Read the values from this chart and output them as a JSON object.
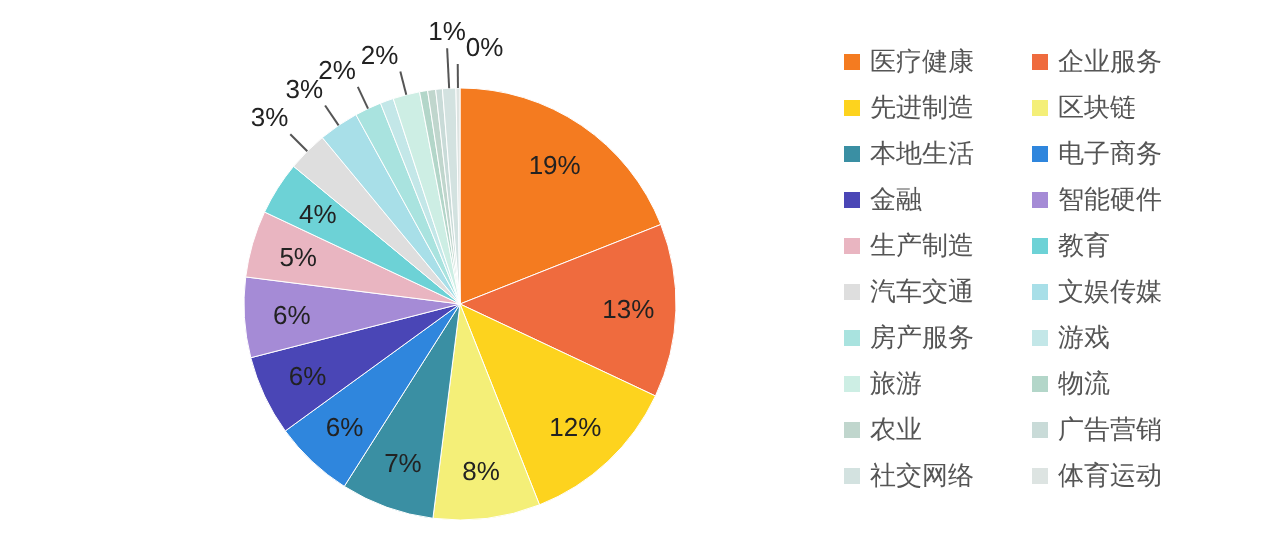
{
  "chart_data": {
    "type": "pie",
    "legend": "right",
    "categories": [
      "医疗健康",
      "企业服务",
      "先进制造",
      "区块链",
      "本地生活",
      "电子商务",
      "金融",
      "智能硬件",
      "生产制造",
      "教育",
      "汽车交通",
      "文娱传媒",
      "房产服务",
      "游戏",
      "旅游",
      "物流",
      "农业",
      "广告营销",
      "社交网络",
      "体育运动"
    ],
    "values": [
      19,
      13,
      12,
      8,
      7,
      6,
      6,
      6,
      5,
      4,
      3,
      3,
      2,
      1,
      2,
      0.6,
      0.6,
      0.5,
      1,
      0.3
    ],
    "value_labels": [
      "19%",
      "13%",
      "12%",
      "8%",
      "7%",
      "6%",
      "6%",
      "6%",
      "5%",
      "4%",
      "3%",
      "3%",
      "2%",
      null,
      "2%",
      null,
      null,
      null,
      "1%",
      "0%"
    ],
    "colors": [
      "#f47b20",
      "#ef6b3e",
      "#fdd31e",
      "#f4ef78",
      "#3a8fa3",
      "#2f86dd",
      "#4a46b6",
      "#a58bd6",
      "#e9b5c1",
      "#6dd2d6",
      "#dedede",
      "#a8dfe8",
      "#a9e3df",
      "#c3e7e8",
      "#cdeee4",
      "#b3d6c9",
      "#c0d6cd",
      "#c9dbd8",
      "#d3e2e0",
      "#dde4e2"
    ]
  }
}
